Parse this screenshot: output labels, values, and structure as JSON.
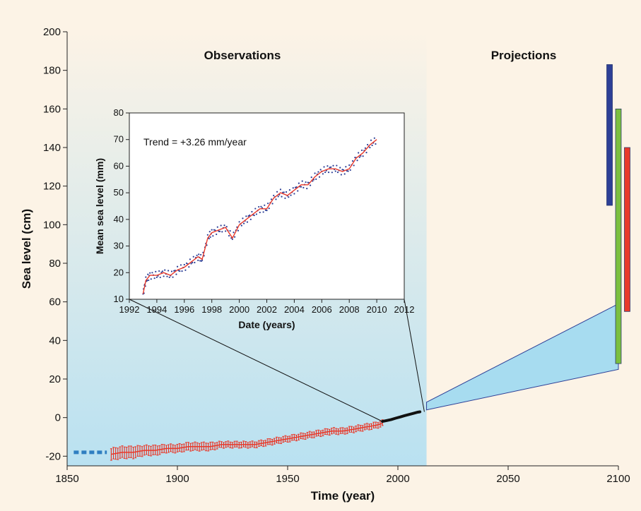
{
  "chart_data": [
    {
      "type": "line",
      "role": "main",
      "xlabel": "Time (year)",
      "ylabel": "Sea level (cm)",
      "xlim": [
        1850,
        2100
      ],
      "ylim": [
        -25,
        200
      ],
      "x_ticks": [
        1850,
        1900,
        1950,
        2000,
        2050,
        2100
      ],
      "y_ticks": [
        -20,
        0,
        20,
        40,
        60,
        80,
        100,
        120,
        140,
        160,
        180,
        200
      ],
      "section_labels": [
        "Observations",
        "Projections"
      ],
      "observation_shading_end_year": 2013,
      "series": [
        {
          "kind": "dashed",
          "color": "#2f7fc1",
          "x": [
            1853,
            1868
          ],
          "y": [
            -18,
            -18
          ]
        },
        {
          "kind": "errorbar",
          "color": "#e8392a",
          "x": [
            1870,
            1875,
            1880,
            1885,
            1890,
            1895,
            1900,
            1905,
            1910,
            1915,
            1920,
            1925,
            1930,
            1935,
            1940,
            1945,
            1950,
            1955,
            1960,
            1965,
            1970,
            1975,
            1980,
            1985,
            1990,
            1993
          ],
          "y": [
            -19,
            -18,
            -18,
            -17,
            -17,
            -16,
            -16,
            -15,
            -15,
            -15,
            -14,
            -14,
            -14,
            -14,
            -13,
            -12,
            -11,
            -10,
            -9,
            -8,
            -7,
            -7,
            -6,
            -5,
            -4,
            -3
          ],
          "err": [
            3,
            3,
            3,
            2.5,
            2.5,
            2,
            2,
            2,
            2,
            2,
            1.5,
            1.5,
            1.5,
            1.5,
            1.5,
            1.5,
            1.5,
            1.5,
            1.5,
            1.5,
            1.5,
            1.5,
            1.5,
            1.5,
            1.5,
            1.5
          ]
        },
        {
          "kind": "satellite",
          "color": "#111111",
          "x": [
            1993,
            1995,
            1997,
            1999,
            2001,
            2003,
            2005,
            2007,
            2009,
            2010
          ],
          "y": [
            -2,
            -1.5,
            -1,
            -0.3,
            0.3,
            1,
            1.6,
            2.2,
            2.8,
            3
          ]
        }
      ],
      "projection_range": {
        "color": "#a7dcf0",
        "start_year": 2013,
        "start": [
          4,
          8
        ],
        "end_year": 2100,
        "end": [
          25,
          59
        ]
      },
      "projection_bars": [
        {
          "color": "#2d3f96",
          "x": 2096,
          "range": [
            110,
            183
          ]
        },
        {
          "color": "#7bbf3f",
          "x": 2100,
          "range": [
            28,
            160
          ]
        },
        {
          "color": "#e8392a",
          "x": 2104,
          "range": [
            55,
            140
          ]
        }
      ]
    },
    {
      "type": "line",
      "role": "inset",
      "xlabel": "Date (years)",
      "ylabel": "Mean sea level (mm)",
      "xlim": [
        1992,
        2012
      ],
      "ylim": [
        10,
        80
      ],
      "x_ticks": [
        1992,
        1994,
        1996,
        1998,
        2000,
        2002,
        2004,
        2006,
        2008,
        2010,
        2012
      ],
      "y_ticks": [
        10,
        20,
        30,
        40,
        50,
        60,
        70,
        80
      ],
      "annotation": "Trend = +3.26 mm/year",
      "series": [
        {
          "kind": "smoothed",
          "color": "#e8392a",
          "x": [
            1993.0,
            1993.2,
            1993.5,
            1994.0,
            1994.5,
            1995.0,
            1995.5,
            1996.0,
            1996.5,
            1997.0,
            1997.3,
            1997.7,
            1998.0,
            1998.5,
            1999.0,
            1999.5,
            2000.0,
            2000.5,
            2001.0,
            2001.5,
            2002.0,
            2002.5,
            2003.0,
            2003.5,
            2004.0,
            2004.5,
            2005.0,
            2005.5,
            2006.0,
            2006.5,
            2007.0,
            2007.5,
            2008.0,
            2008.5,
            2009.0,
            2009.5,
            2010.0
          ],
          "y": [
            12,
            17,
            19,
            19,
            20,
            19,
            21,
            22,
            24,
            26,
            25,
            33,
            35,
            36,
            37,
            33,
            38,
            40,
            42,
            44,
            44,
            48,
            50,
            49,
            51,
            53,
            53,
            56,
            58,
            59,
            59,
            58,
            59,
            63,
            65,
            68,
            70
          ]
        },
        {
          "kind": "dots",
          "color": "#2d3f96",
          "x": [
            1993.0,
            1993.2,
            1993.5,
            1994.0,
            1994.5,
            1995.0,
            1995.5,
            1996.0,
            1996.5,
            1997.0,
            1997.3,
            1997.7,
            1998.0,
            1998.5,
            1999.0,
            1999.5,
            2000.0,
            2000.5,
            2001.0,
            2001.5,
            2002.0,
            2002.5,
            2003.0,
            2003.5,
            2004.0,
            2004.5,
            2005.0,
            2005.5,
            2006.0,
            2006.5,
            2007.0,
            2007.5,
            2008.0,
            2008.5,
            2009.0,
            2009.5,
            2010.0
          ],
          "y": [
            12,
            17,
            19,
            19,
            20,
            19,
            21,
            22,
            24,
            26,
            25,
            33,
            35,
            36,
            37,
            33,
            38,
            40,
            42,
            44,
            44,
            48,
            50,
            49,
            51,
            53,
            53,
            56,
            58,
            59,
            59,
            58,
            59,
            63,
            65,
            68,
            70
          ]
        }
      ]
    }
  ]
}
